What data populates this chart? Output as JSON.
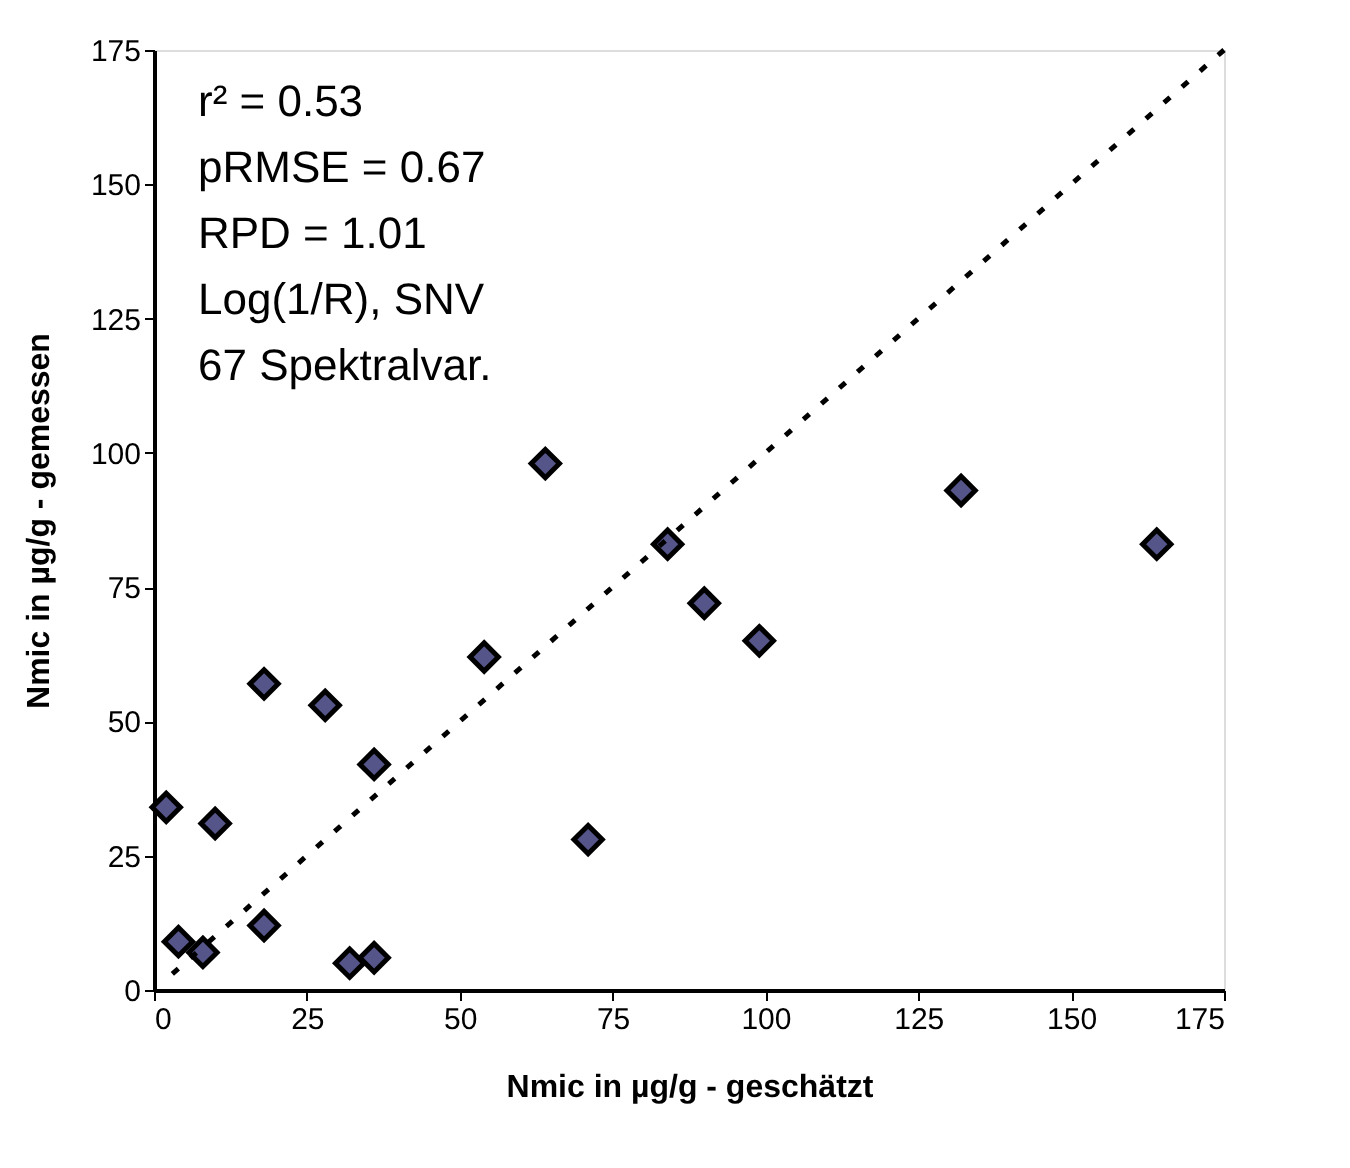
{
  "chart_data": {
    "type": "scatter",
    "xlabel": "Nmic in µg/g - geschätzt",
    "ylabel": "Nmic in µg/g - gemessen",
    "xlim": [
      0,
      175
    ],
    "ylim": [
      0,
      175
    ],
    "xticks": [
      0,
      25,
      50,
      75,
      100,
      125,
      150,
      175
    ],
    "yticks": [
      0,
      25,
      50,
      75,
      100,
      125,
      150,
      175
    ],
    "marker": "diamond",
    "annotations": [
      "r² = 0.53",
      "pRMSE = 0.67",
      "RPD = 1.01",
      "Log(1/R), SNV",
      "67 Spektralvar."
    ],
    "series": [
      {
        "color": "#55558a",
        "x": [
          2,
          4,
          8,
          10,
          18,
          18,
          28,
          32,
          36,
          36,
          54,
          64,
          71,
          84,
          90,
          99,
          132,
          164
        ],
        "values": [
          34,
          9,
          7,
          31,
          57,
          12,
          53,
          5,
          6,
          42,
          62,
          98,
          28,
          83,
          72,
          65,
          93,
          83
        ]
      },
      {
        "type": "line",
        "color": "#000000",
        "line_style": "dotted",
        "marker": "none",
        "x": [
          3,
          175
        ],
        "values": [
          3,
          175
        ]
      }
    ]
  }
}
